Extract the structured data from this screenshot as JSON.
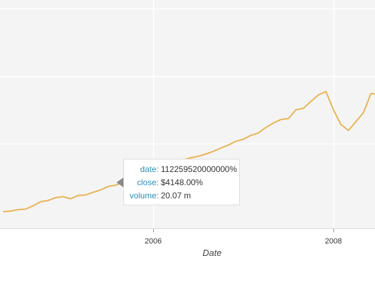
{
  "chart_data": {
    "type": "line",
    "title": "",
    "xlabel": "Date",
    "ylabel": "",
    "x_tick_labels": [
      "2006",
      "2008"
    ],
    "grid": true,
    "colors": {
      "line": "#e8b455",
      "plot_background": "#f4f4f4",
      "grid": "#ffffff",
      "tooltip_key": "#2a8fb8"
    },
    "series": [
      {
        "dates": [
          "2004-05",
          "2004-06",
          "2004-07",
          "2004-08",
          "2004-09",
          "2004-10",
          "2004-11",
          "2004-12",
          "2005-01",
          "2005-02",
          "2005-03",
          "2005-04",
          "2005-05",
          "2005-06",
          "2005-07",
          "2005-08",
          "2005-09",
          "2005-10",
          "2005-11",
          "2005-12",
          "2006-01",
          "2006-02",
          "2006-03",
          "2006-04",
          "2006-05",
          "2006-06",
          "2006-07",
          "2006-08",
          "2006-09",
          "2006-10",
          "2006-11",
          "2006-12",
          "2007-01",
          "2007-02",
          "2007-03",
          "2007-04",
          "2007-05",
          "2007-06",
          "2007-07",
          "2007-08",
          "2007-09",
          "2007-10",
          "2007-11",
          "2007-12",
          "2008-01",
          "2008-02",
          "2008-03",
          "2008-04",
          "2008-05",
          "2008-06",
          "2008-07",
          "2008-08"
        ],
        "values": [
          2640,
          2660,
          2710,
          2730,
          2840,
          2980,
          3020,
          3120,
          3150,
          3080,
          3190,
          3210,
          3300,
          3380,
          3500,
          3540,
          3650,
          3780,
          3860,
          3980,
          4100,
          4148,
          4250,
          4300,
          4400,
          4470,
          4520,
          4600,
          4690,
          4800,
          4900,
          5030,
          5100,
          5230,
          5310,
          5500,
          5650,
          5770,
          5800,
          6100,
          6150,
          6380,
          6600,
          6720,
          6100,
          5600,
          5400,
          5700,
          6000,
          6650,
          6620,
          6580
        ]
      }
    ],
    "tooltip": {
      "rows": [
        {
          "key": "date:",
          "value": "112259520000000%"
        },
        {
          "key": "close:",
          "value": "$4148.00%"
        },
        {
          "key": "volume:",
          "value": "20.07 m"
        }
      ]
    }
  }
}
